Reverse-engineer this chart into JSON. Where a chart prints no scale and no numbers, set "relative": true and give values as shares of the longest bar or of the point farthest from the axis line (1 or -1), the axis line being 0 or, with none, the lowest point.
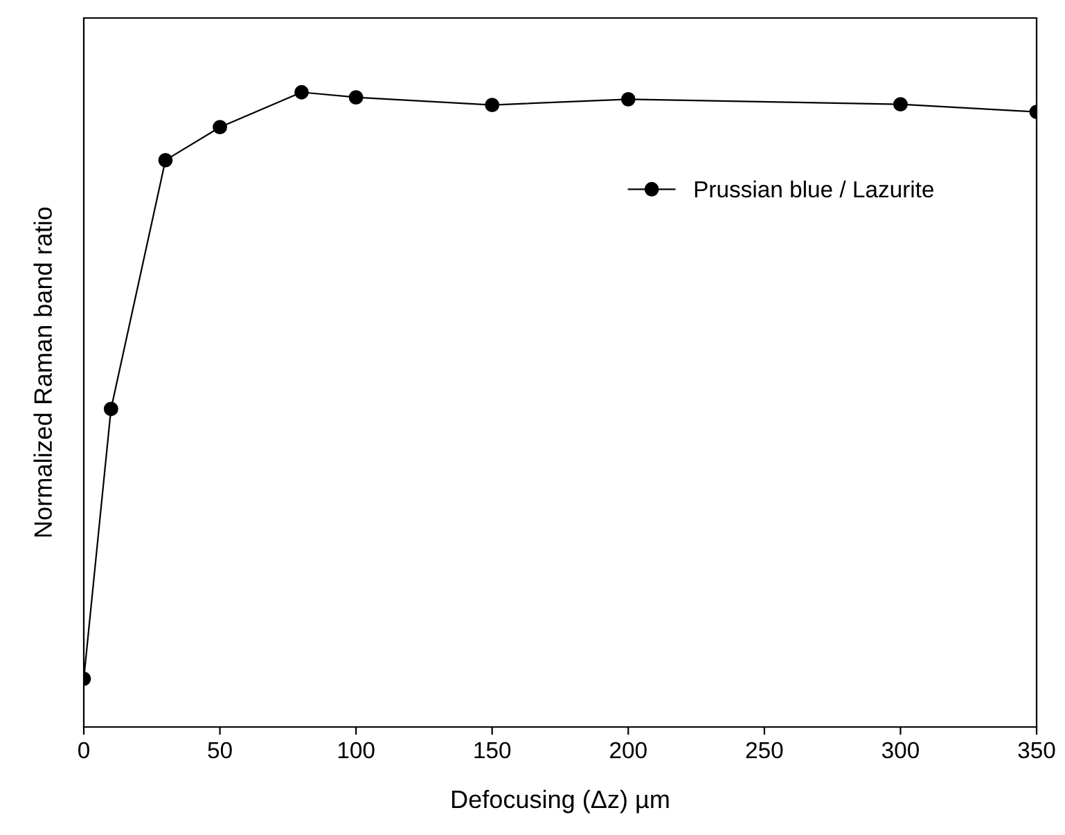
{
  "chart_data": {
    "type": "line",
    "xlabel": "Defocusing (Δz) µm",
    "ylabel": "Normalized Raman band ratio",
    "relative": true,
    "x": [
      0,
      10,
      30,
      50,
      80,
      100,
      150,
      200,
      300,
      350
    ],
    "series": [
      {
        "name": "Prussian blue / Lazurite",
        "color": "#000000",
        "values": [
          0.076,
          0.501,
          0.893,
          0.945,
          1,
          0.992,
          0.98,
          0.989,
          0.981,
          0.969
        ]
      }
    ],
    "xlim": [
      0,
      350
    ],
    "xticks": [
      0,
      50,
      100,
      150,
      200,
      250,
      300,
      350
    ],
    "grid": false,
    "legend": "top right",
    "marker": "circle",
    "line_style": "solid"
  }
}
